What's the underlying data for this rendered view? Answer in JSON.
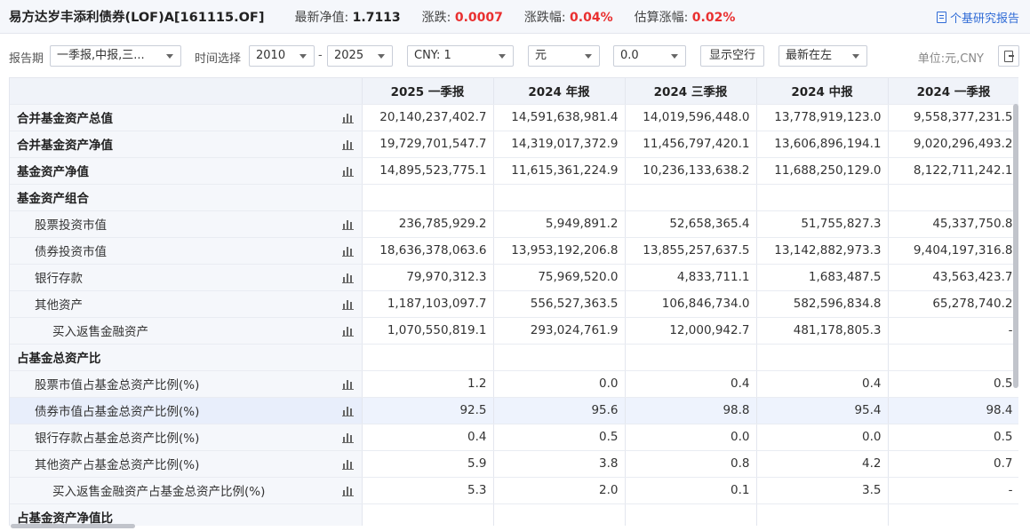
{
  "header": {
    "fund_name": "易方达岁丰添利债券(LOF)A[161115.OF]",
    "nav_label": "最新净值:",
    "nav_value": "1.7113",
    "change_label": "涨跌:",
    "change_value": "0.0007",
    "change_pct_label": "涨跌幅:",
    "change_pct_value": "0.04%",
    "est_label": "估算涨幅:",
    "est_value": "0.02%",
    "report_link": "个基研究报告"
  },
  "toolbar": {
    "period_label": "报告期",
    "period_value": "一季报,中报,三...",
    "time_label": "时间选择",
    "year_from": "2010",
    "dash": "-",
    "year_to": "2025",
    "currency": "CNY: 1",
    "unit_select": "元",
    "decimal": "0.0",
    "show_empty_btn": "显示空行",
    "order_select": "最新在左",
    "unit_text": "单位:元,CNY"
  },
  "table": {
    "columns": [
      "2025 一季报",
      "2024 年报",
      "2024 三季报",
      "2024 中报",
      "2024 一季报"
    ],
    "rows": [
      {
        "label": "合并基金资产总值",
        "level": 0,
        "bold": true,
        "chart": true,
        "values": [
          "20,140,237,402.7",
          "14,591,638,981.4",
          "14,019,596,448.0",
          "13,778,919,123.0",
          "9,558,377,231.5"
        ]
      },
      {
        "label": "合并基金资产净值",
        "level": 0,
        "bold": true,
        "chart": true,
        "values": [
          "19,729,701,547.7",
          "14,319,017,372.9",
          "11,456,797,420.1",
          "13,606,896,194.1",
          "9,020,296,493.2"
        ]
      },
      {
        "label": "基金资产净值",
        "level": 0,
        "bold": true,
        "chart": true,
        "values": [
          "14,895,523,775.1",
          "11,615,361,224.9",
          "10,236,133,638.2",
          "11,688,250,129.0",
          "8,122,711,242.1"
        ]
      },
      {
        "label": "基金资产组合",
        "level": 0,
        "bold": true,
        "chart": false,
        "values": [
          "",
          "",
          "",
          "",
          ""
        ]
      },
      {
        "label": "股票投资市值",
        "level": 1,
        "bold": false,
        "chart": true,
        "values": [
          "236,785,929.2",
          "5,949,891.2",
          "52,658,365.4",
          "51,755,827.3",
          "45,337,750.8"
        ]
      },
      {
        "label": "债券投资市值",
        "level": 1,
        "bold": false,
        "chart": true,
        "values": [
          "18,636,378,063.6",
          "13,953,192,206.8",
          "13,855,257,637.5",
          "13,142,882,973.3",
          "9,404,197,316.8"
        ]
      },
      {
        "label": "银行存款",
        "level": 1,
        "bold": false,
        "chart": true,
        "values": [
          "79,970,312.3",
          "75,969,520.0",
          "4,833,711.1",
          "1,683,487.5",
          "43,563,423.7"
        ]
      },
      {
        "label": "其他资产",
        "level": 1,
        "bold": false,
        "chart": true,
        "values": [
          "1,187,103,097.7",
          "556,527,363.5",
          "106,846,734.0",
          "582,596,834.8",
          "65,278,740.2"
        ]
      },
      {
        "label": "买入返售金融资产",
        "level": 2,
        "bold": false,
        "chart": true,
        "values": [
          "1,070,550,819.1",
          "293,024,761.9",
          "12,000,942.7",
          "481,178,805.3",
          "-"
        ]
      },
      {
        "label": "占基金总资产比",
        "level": 0,
        "bold": true,
        "chart": false,
        "values": [
          "",
          "",
          "",
          "",
          ""
        ]
      },
      {
        "label": "股票市值占基金总资产比例(%)",
        "level": 1,
        "bold": false,
        "chart": true,
        "values": [
          "1.2",
          "0.0",
          "0.4",
          "0.4",
          "0.5"
        ]
      },
      {
        "label": "债券市值占基金总资产比例(%)",
        "level": 1,
        "bold": false,
        "chart": true,
        "highlight": true,
        "values": [
          "92.5",
          "95.6",
          "98.8",
          "95.4",
          "98.4"
        ]
      },
      {
        "label": "银行存款占基金总资产比例(%)",
        "level": 1,
        "bold": false,
        "chart": true,
        "values": [
          "0.4",
          "0.5",
          "0.0",
          "0.0",
          "0.5"
        ]
      },
      {
        "label": "其他资产占基金总资产比例(%)",
        "level": 1,
        "bold": false,
        "chart": true,
        "values": [
          "5.9",
          "3.8",
          "0.8",
          "4.2",
          "0.7"
        ]
      },
      {
        "label": "买入返售金融资产占基金总资产比例(%)",
        "level": 2,
        "bold": false,
        "chart": true,
        "values": [
          "5.3",
          "2.0",
          "0.1",
          "3.5",
          "-"
        ]
      },
      {
        "label": "占基金资产净值比",
        "level": 0,
        "bold": true,
        "chart": false,
        "values": [
          "",
          "",
          "",
          "",
          ""
        ]
      }
    ]
  },
  "colors": {
    "accent": "#2f6bd6",
    "up": "#e93030"
  }
}
